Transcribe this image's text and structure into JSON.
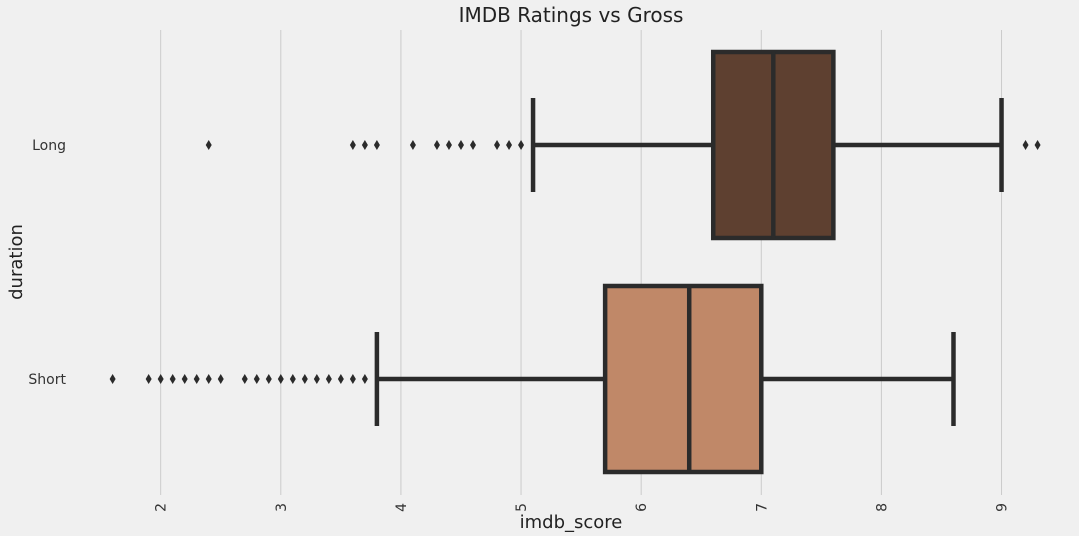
{
  "chart_data": {
    "type": "boxplot",
    "orientation": "horizontal",
    "title": "IMDB Ratings vs Gross",
    "xlabel": "imdb_score",
    "ylabel": "duration",
    "xlim": [
      1.37,
      9.52
    ],
    "xticks": [
      "2",
      "3",
      "4",
      "5",
      "6",
      "7",
      "8",
      "9"
    ],
    "grid": "vertical",
    "categories": [
      "Long",
      "Short"
    ],
    "series": [
      {
        "name": "Long",
        "color": "#5e4030",
        "whisker_low": 5.1,
        "q1": 6.6,
        "median": 7.1,
        "q3": 7.6,
        "whisker_high": 9.0,
        "outliers": [
          2.4,
          3.6,
          3.7,
          3.8,
          4.1,
          4.3,
          4.4,
          4.5,
          4.6,
          4.8,
          4.9,
          5.0,
          9.2,
          9.3
        ]
      },
      {
        "name": "Short",
        "color": "#c08868",
        "whisker_low": 3.8,
        "q1": 5.7,
        "median": 6.4,
        "q3": 7.0,
        "whisker_high": 8.6,
        "outliers": [
          1.6,
          1.9,
          2.0,
          2.1,
          2.2,
          2.3,
          2.4,
          2.5,
          2.7,
          2.8,
          2.9,
          3.0,
          3.1,
          3.2,
          3.3,
          3.4,
          3.5,
          3.6,
          3.7
        ]
      }
    ]
  }
}
